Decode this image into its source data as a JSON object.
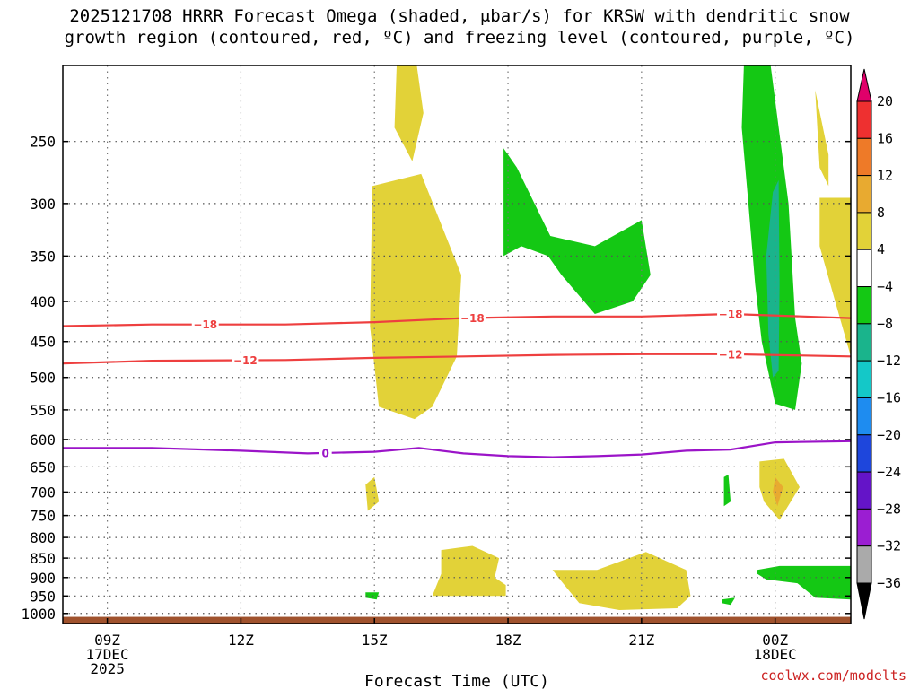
{
  "chart_data": {
    "type": "heatmap",
    "title": "2025121708 HRRR Forecast Omega (shaded, μbar/s) for KRSW with dendritic snow\ngrowth region (contoured, red, ºC) and freezing level (contoured, purple, ºC)",
    "xlabel": "Forecast Time (UTC)",
    "ylabel": "",
    "x_range_hours": [
      8,
      25.7
    ],
    "y_range_hpa": [
      200,
      1030
    ],
    "y_scale": "log-pressure",
    "grid": true,
    "y_ticks": [
      250,
      300,
      350,
      400,
      450,
      500,
      550,
      600,
      650,
      700,
      750,
      800,
      850,
      900,
      950,
      1000
    ],
    "x_ticks": [
      {
        "hour": 9,
        "label": "09Z",
        "sub": [
          "17DEC",
          "2025"
        ]
      },
      {
        "hour": 12,
        "label": "12Z",
        "sub": []
      },
      {
        "hour": 15,
        "label": "15Z",
        "sub": []
      },
      {
        "hour": 18,
        "label": "18Z",
        "sub": []
      },
      {
        "hour": 21,
        "label": "21Z",
        "sub": []
      },
      {
        "hour": 24,
        "label": "00Z",
        "sub": [
          "18DEC"
        ]
      }
    ],
    "colorbar": {
      "labels": [
        "20",
        "16",
        "12",
        "8",
        "4",
        "−4",
        "−8",
        "−12",
        "−16",
        "−20",
        "−24",
        "−28",
        "−32",
        "−36"
      ],
      "colors": [
        "#e0006a",
        "#ee3030",
        "#ee7a28",
        "#e8aa30",
        "#e2d238",
        "#ffffff",
        "#14c814",
        "#1ab48c",
        "#14c8c8",
        "#1e8cf0",
        "#1e46dc",
        "#6414c8",
        "#9b1ed2",
        "#aaaaaa",
        "#000000"
      ]
    },
    "omega_regions": [
      {
        "name": "",
        "level": "up_weak",
        "color": "#14c814",
        "points": [
          [
            23.3,
            200
          ],
          [
            23.9,
            200
          ],
          [
            24.3,
            300
          ],
          [
            24.45,
            420
          ],
          [
            24.6,
            480
          ],
          [
            24.45,
            550
          ],
          [
            24.0,
            540
          ],
          [
            23.7,
            450
          ],
          [
            23.55,
            380
          ],
          [
            23.4,
            300
          ],
          [
            23.25,
            240
          ]
        ]
      },
      {
        "name": "",
        "level": "up_moderate",
        "color": "#1ab48c",
        "points": [
          [
            23.95,
            290
          ],
          [
            24.08,
            280
          ],
          [
            24.1,
            380
          ],
          [
            24.08,
            490
          ],
          [
            23.95,
            500
          ],
          [
            23.85,
            440
          ],
          [
            23.8,
            350
          ]
        ]
      },
      {
        "name": "",
        "level": "up_weak",
        "color": "#14c814",
        "points": [
          [
            17.9,
            255
          ],
          [
            18.2,
            270
          ],
          [
            18.95,
            330
          ],
          [
            19.95,
            340
          ],
          [
            21.0,
            315
          ],
          [
            21.2,
            370
          ],
          [
            20.8,
            400
          ],
          [
            19.95,
            415
          ],
          [
            19.2,
            370
          ],
          [
            18.9,
            350
          ],
          [
            18.3,
            340
          ],
          [
            17.9,
            350
          ]
        ]
      },
      {
        "name": "",
        "level": "up_weak",
        "color": "#14c814",
        "points": [
          [
            23.6,
            880
          ],
          [
            24.1,
            870
          ],
          [
            25.7,
            870
          ],
          [
            25.7,
            960
          ],
          [
            24.9,
            955
          ],
          [
            24.5,
            915
          ],
          [
            23.8,
            905
          ],
          [
            23.6,
            890
          ]
        ]
      },
      {
        "name": "",
        "level": "up_weak",
        "color": "#14c814",
        "points": [
          [
            14.8,
            940
          ],
          [
            15.1,
            940
          ],
          [
            15.05,
            960
          ],
          [
            14.8,
            955
          ]
        ]
      },
      {
        "name": "",
        "level": "up_weak",
        "color": "#14c814",
        "points": [
          [
            22.8,
            960
          ],
          [
            23.1,
            955
          ],
          [
            23.0,
            975
          ],
          [
            22.8,
            970
          ]
        ]
      },
      {
        "name": "",
        "level": "up_weak",
        "color": "#14c814",
        "points": [
          [
            22.85,
            670
          ],
          [
            22.95,
            665
          ],
          [
            23.0,
            720
          ],
          [
            22.85,
            730
          ]
        ]
      },
      {
        "name": "",
        "level": "down_weak",
        "color": "#e2d238",
        "points": [
          [
            15.5,
            200
          ],
          [
            15.95,
            200
          ],
          [
            16.1,
            230
          ],
          [
            15.85,
            265
          ],
          [
            15.45,
            240
          ]
        ]
      },
      {
        "name": "",
        "level": "down_weak",
        "color": "#e2d238",
        "points": [
          [
            14.95,
            285
          ],
          [
            16.05,
            275
          ],
          [
            16.95,
            370
          ],
          [
            16.85,
            470
          ],
          [
            16.3,
            545
          ],
          [
            15.9,
            565
          ],
          [
            15.1,
            545
          ],
          [
            14.9,
            430
          ]
        ]
      },
      {
        "name": "",
        "level": "down_weak",
        "color": "#e2d238",
        "points": [
          [
            25.0,
            295
          ],
          [
            25.7,
            295
          ],
          [
            25.7,
            470
          ],
          [
            25.35,
            400
          ],
          [
            25.0,
            340
          ]
        ]
      },
      {
        "name": "",
        "level": "down_weak",
        "color": "#e2d238",
        "points": [
          [
            24.9,
            215
          ],
          [
            25.2,
            260
          ],
          [
            25.2,
            285
          ],
          [
            25.0,
            270
          ]
        ]
      },
      {
        "name": "",
        "level": "down_weak",
        "color": "#e2d238",
        "points": [
          [
            23.65,
            640
          ],
          [
            24.2,
            635
          ],
          [
            24.55,
            690
          ],
          [
            24.1,
            760
          ],
          [
            23.75,
            720
          ],
          [
            23.65,
            690
          ]
        ]
      },
      {
        "name": "",
        "level": "down_moderate",
        "color": "#e8aa30",
        "points": [
          [
            24.0,
            670
          ],
          [
            24.18,
            690
          ],
          [
            24.05,
            730
          ],
          [
            23.95,
            700
          ]
        ]
      },
      {
        "name": "",
        "level": "down_weak",
        "color": "#e2d238",
        "points": [
          [
            14.8,
            685
          ],
          [
            15.0,
            670
          ],
          [
            15.1,
            720
          ],
          [
            14.85,
            740
          ]
        ]
      },
      {
        "name": "",
        "level": "down_weak",
        "color": "#e2d238",
        "points": [
          [
            16.5,
            830
          ],
          [
            17.2,
            820
          ],
          [
            17.8,
            850
          ],
          [
            17.7,
            900
          ],
          [
            17.95,
            920
          ],
          [
            17.95,
            950
          ],
          [
            16.3,
            950
          ],
          [
            16.5,
            890
          ]
        ]
      },
      {
        "name": "",
        "level": "down_weak",
        "color": "#e2d238",
        "points": [
          [
            19.0,
            880
          ],
          [
            20.0,
            880
          ],
          [
            21.1,
            835
          ],
          [
            22.0,
            880
          ],
          [
            22.1,
            950
          ],
          [
            21.8,
            985
          ],
          [
            20.5,
            990
          ],
          [
            19.6,
            970
          ],
          [
            19.2,
            910
          ]
        ]
      }
    ],
    "contours": [
      {
        "name": "−18",
        "color": "#ee3f3f",
        "kind": "dendritic",
        "x": [
          8,
          10,
          13,
          15,
          17,
          19,
          21,
          23,
          25.7
        ],
        "y": [
          430,
          428,
          428,
          425,
          420,
          418,
          418,
          415,
          420
        ],
        "label_at": [
          11.2,
          17.2,
          23.0
        ]
      },
      {
        "name": "−12",
        "color": "#ee3f3f",
        "kind": "dendritic",
        "x": [
          8,
          10,
          13,
          15,
          17,
          19,
          21,
          23,
          25.7
        ],
        "y": [
          480,
          476,
          475,
          472,
          470,
          468,
          467,
          467,
          470
        ],
        "label_at": [
          12.1,
          23.0
        ]
      },
      {
        "name": "0",
        "color": "#9b14c8",
        "kind": "freezing",
        "x": [
          8,
          10,
          12,
          13.5,
          15,
          16,
          17,
          18,
          19,
          20,
          21,
          22,
          23,
          24,
          25.7
        ],
        "y": [
          615,
          615,
          620,
          625,
          622,
          615,
          625,
          630,
          632,
          630,
          627,
          620,
          618,
          605,
          603
        ],
        "label_at": [
          13.9
        ]
      }
    ],
    "ground_band_hpa": [
      1010,
      1030
    ]
  },
  "credit": "coolwx.com/modelts"
}
